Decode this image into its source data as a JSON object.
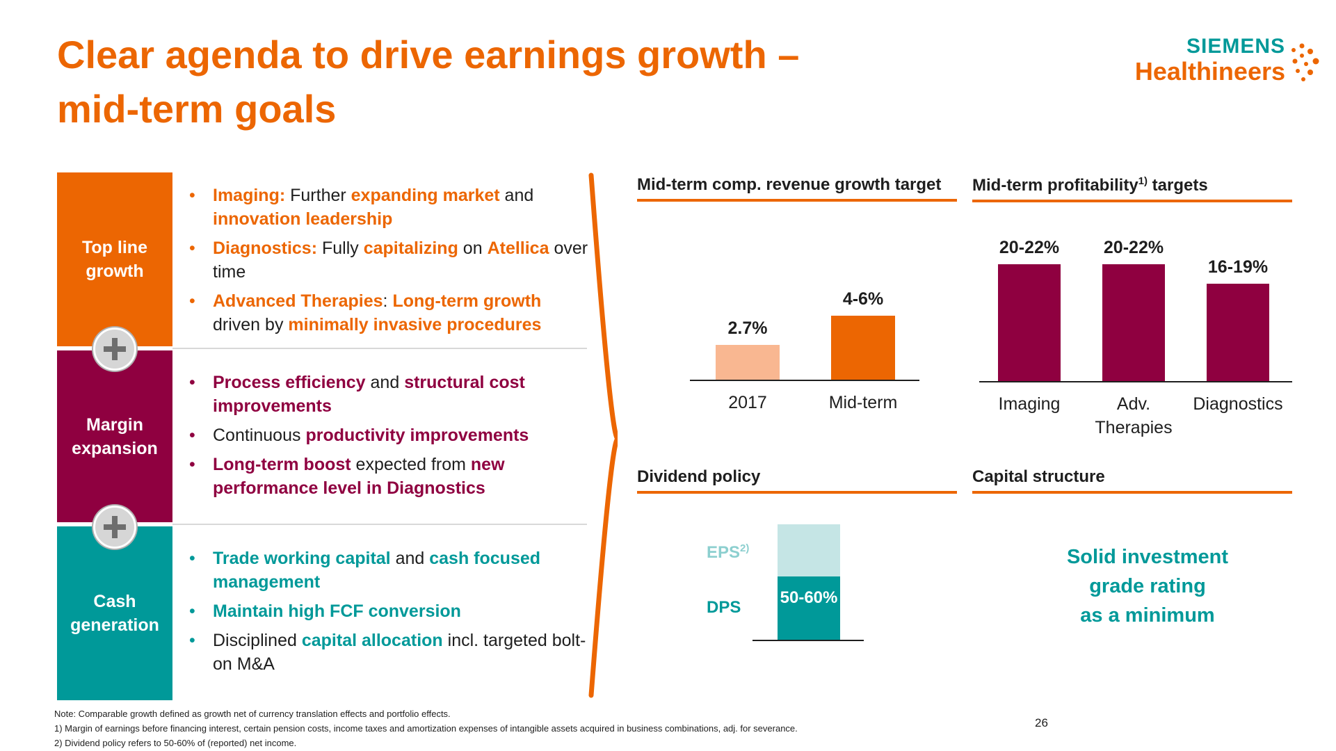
{
  "title": {
    "line1": "Clear agenda to drive earnings growth –",
    "line2": "mid-term goals"
  },
  "logo": {
    "brand": "SIEMENS",
    "sub": "Healthineers"
  },
  "colors": {
    "orange": "#ec6602",
    "light_orange": "#f9b791",
    "berry": "#8f0040",
    "teal": "#009999",
    "light_teal": "#c5e5e5",
    "grey": "#d6d6d6"
  },
  "left_panel": {
    "rows": [
      {
        "label_lines": [
          "Top line",
          "growth"
        ],
        "color": "#ec6602",
        "bullets": [
          [
            {
              "t": "Imaging:",
              "h": true
            },
            {
              "t": " Further "
            },
            {
              "t": "expanding market",
              "h": true
            },
            {
              "t": " and "
            },
            {
              "t": "innovation leadership",
              "h": true
            }
          ],
          [
            {
              "t": "Diagnostics:",
              "h": true
            },
            {
              "t": " Fully "
            },
            {
              "t": "capitalizing",
              "h": true
            },
            {
              "t": " on "
            },
            {
              "t": "Atellica",
              "h": true
            },
            {
              "t": " over time"
            }
          ],
          [
            {
              "t": "Advanced Therapies",
              "h": true
            },
            {
              "t": ": "
            },
            {
              "t": "Long-term growth",
              "h": true
            },
            {
              "t": " driven by "
            },
            {
              "t": "minimally invasive procedures",
              "h": true
            }
          ]
        ]
      },
      {
        "label_lines": [
          "Margin",
          "expansion"
        ],
        "color": "#8f0040",
        "bullets": [
          [
            {
              "t": "Process efficiency",
              "h": true
            },
            {
              "t": " and "
            },
            {
              "t": "structural cost improvements",
              "h": true
            }
          ],
          [
            {
              "t": "Continuous "
            },
            {
              "t": "productivity improvements",
              "h": true
            }
          ],
          [
            {
              "t": "Long-term boost",
              "h": true
            },
            {
              "t": " expected from "
            },
            {
              "t": "new performance level in Diagnostics",
              "h": true
            }
          ]
        ]
      },
      {
        "label_lines": [
          "Cash",
          "generation"
        ],
        "color": "#009999",
        "bullets": [
          [
            {
              "t": "Trade working capital",
              "h": true
            },
            {
              "t": " and "
            },
            {
              "t": "cash focused management",
              "h": true
            }
          ],
          [
            {
              "t": "Maintain high FCF conversion",
              "h": true
            }
          ],
          [
            {
              "t": "Disciplined "
            },
            {
              "t": "capital allocation",
              "h": true
            },
            {
              "t": " incl. targeted bolt-on M&A"
            }
          ]
        ]
      }
    ],
    "plus_icon": "plus-icon"
  },
  "sections": {
    "revenue": {
      "title": "Mid-term comp. revenue growth target"
    },
    "profitability": {
      "title_pre": "Mid-term profitability",
      "title_sup": "1)",
      "title_post": " targets"
    },
    "dividend": {
      "title": "Dividend policy"
    },
    "capital": {
      "title": "Capital structure",
      "text_lines": [
        "Solid investment",
        "grade rating",
        "as a minimum"
      ]
    }
  },
  "chart_data": [
    {
      "type": "bar",
      "title": "Mid-term comp. revenue growth target",
      "categories": [
        "2017",
        "Mid-term"
      ],
      "values": [
        2.7,
        5
      ],
      "value_labels": [
        "2.7%",
        "4-6%"
      ],
      "colors": [
        "#f9b791",
        "#ec6602"
      ],
      "ylim": [
        0,
        10
      ]
    },
    {
      "type": "bar",
      "title": "Mid-term profitability1) targets",
      "categories": [
        "Imaging",
        "Adv. Therapies",
        "Diagnostics"
      ],
      "category_lines": [
        [
          "Imaging"
        ],
        [
          "Adv.",
          "Therapies"
        ],
        [
          "Diagnostics"
        ]
      ],
      "values": [
        21,
        21,
        17.5
      ],
      "value_labels": [
        "20-22%",
        "20-22%",
        "16-19%"
      ],
      "colors": [
        "#8f0040",
        "#8f0040",
        "#8f0040"
      ],
      "ylim": [
        0,
        22.8
      ]
    },
    {
      "type": "bar",
      "title": "Dividend policy",
      "stack": [
        {
          "label": "EPS",
          "label_sup": "2)",
          "color": "#c5e5e5",
          "fraction": 1.0
        },
        {
          "label": "DPS",
          "color": "#009999",
          "fraction": 0.55,
          "value_label": "50-60%"
        }
      ]
    }
  ],
  "footnotes": [
    "Note: Comparable growth defined as growth net of currency translation effects and portfolio effects.",
    "1) Margin of earnings before financing interest, certain pension costs, income taxes and amortization expenses of intangible assets acquired in business combinations, adj. for severance.",
    "2) Dividend policy refers to 50-60% of (reported) net income."
  ],
  "page_number": "26"
}
